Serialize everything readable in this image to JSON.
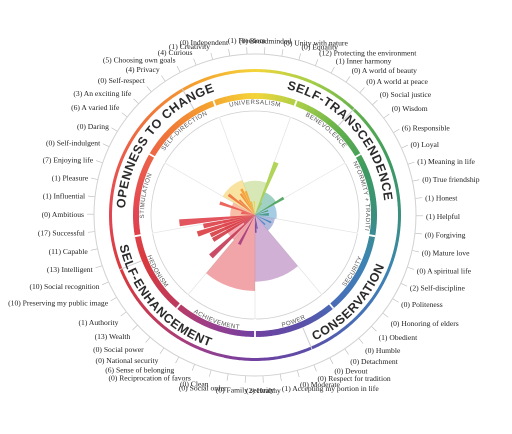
{
  "chart_data": {
    "type": "polar-bar",
    "higher_order_values": [
      {
        "label": "SELF-TRANSCENDENCE"
      },
      {
        "label": "CONSERVATION"
      },
      {
        "label": "SELF-ENHANCEMENT"
      },
      {
        "label": "OPENNESS TO CHANGE"
      }
    ],
    "basic_values": [
      {
        "label": "UNIVERSALISM",
        "value": 1.3,
        "color": "#a6c95a"
      },
      {
        "label": "BENEVOLENCE",
        "value": 0.7,
        "color": "#2f9a7a"
      },
      {
        "label": "CONFORMITY + TRADITION",
        "value": 0.5,
        "color": "#3a8fc1"
      },
      {
        "label": "SECURITY",
        "value": 0.4,
        "color": "#4d66b4"
      },
      {
        "label": "POWER",
        "value": 3.4,
        "color": "#9a4fa3"
      },
      {
        "label": "ACHIEVEMENT",
        "value": 4.0,
        "color": "#e0383e"
      },
      {
        "label": "HEDONISM",
        "value": 1.2,
        "color": "#e64c5e"
      },
      {
        "label": "STIMULATION",
        "value": 0.7,
        "color": "#f26b3a"
      },
      {
        "label": "SELF-DIRECTION",
        "value": 1.5,
        "color": "#f2c02c"
      }
    ],
    "items": [
      {
        "label": "Protecting the environment",
        "count": 12
      },
      {
        "label": "Inner harmony",
        "count": 1
      },
      {
        "label": "A world of beauty",
        "count": 0
      },
      {
        "label": "A world at peace",
        "count": 0
      },
      {
        "label": "Social justice",
        "count": 0
      },
      {
        "label": "Wisdom",
        "count": 0
      },
      {
        "label": "Responsible",
        "count": 6
      },
      {
        "label": "Loyal",
        "count": 0
      },
      {
        "label": "Meaning in life",
        "count": 1
      },
      {
        "label": "True friendship",
        "count": 0
      },
      {
        "label": "Honest",
        "count": 1
      },
      {
        "label": "Helpful",
        "count": 1
      },
      {
        "label": "Forgiving",
        "count": 0
      },
      {
        "label": "Mature love",
        "count": 0
      },
      {
        "label": "A spiritual life",
        "count": 0
      },
      {
        "label": "Self-discipline",
        "count": 2
      },
      {
        "label": "Politeness",
        "count": 0
      },
      {
        "label": "Honoring of elders",
        "count": 0
      },
      {
        "label": "Obedient",
        "count": 1
      },
      {
        "label": "Humble",
        "count": 0
      },
      {
        "label": "Detachment",
        "count": 0
      },
      {
        "label": "Devout",
        "count": 0
      },
      {
        "label": "Respect for tradition",
        "count": 0
      },
      {
        "label": "Moderate",
        "count": 0
      },
      {
        "label": "Accepting my portion in life",
        "count": 1
      },
      {
        "label": "Healthy",
        "count": 2
      },
      {
        "label": "Family security",
        "count": 0
      },
      {
        "label": "Social order",
        "count": 0
      },
      {
        "label": "Clean",
        "count": 0
      },
      {
        "label": "Reciprocation of favors",
        "count": 0
      },
      {
        "label": "Sense of belonging",
        "count": 6
      },
      {
        "label": "National security",
        "count": 0
      },
      {
        "label": "Social power",
        "count": 0
      },
      {
        "label": "Wealth",
        "count": 13
      },
      {
        "label": "Authority",
        "count": 1
      },
      {
        "label": "Preserving my public image",
        "count": 10
      },
      {
        "label": "Social recognition",
        "count": 10
      },
      {
        "label": "Intelligent",
        "count": 13
      },
      {
        "label": "Capable",
        "count": 11
      },
      {
        "label": "Successful",
        "count": 17
      },
      {
        "label": "Ambitious",
        "count": 0
      },
      {
        "label": "Influential",
        "count": 1
      },
      {
        "label": "Pleasure",
        "count": 1
      },
      {
        "label": "Enjoying life",
        "count": 7
      },
      {
        "label": "Self-indulgent",
        "count": 0
      },
      {
        "label": "Daring",
        "count": 0
      },
      {
        "label": "A varied life",
        "count": 6
      },
      {
        "label": "An exciting life",
        "count": 3
      },
      {
        "label": "Self-respect",
        "count": 0
      },
      {
        "label": "Privacy",
        "count": 4
      },
      {
        "label": "Choosing own goals",
        "count": 5
      },
      {
        "label": "Curious",
        "count": 4
      },
      {
        "label": "Creativity",
        "count": 1
      },
      {
        "label": "Independent",
        "count": 0
      },
      {
        "label": "Freedom",
        "count": 1
      },
      {
        "label": "Broadminded",
        "count": 0
      },
      {
        "label": "Unity with nature",
        "count": 0
      },
      {
        "label": "Equality",
        "count": 0
      }
    ]
  }
}
